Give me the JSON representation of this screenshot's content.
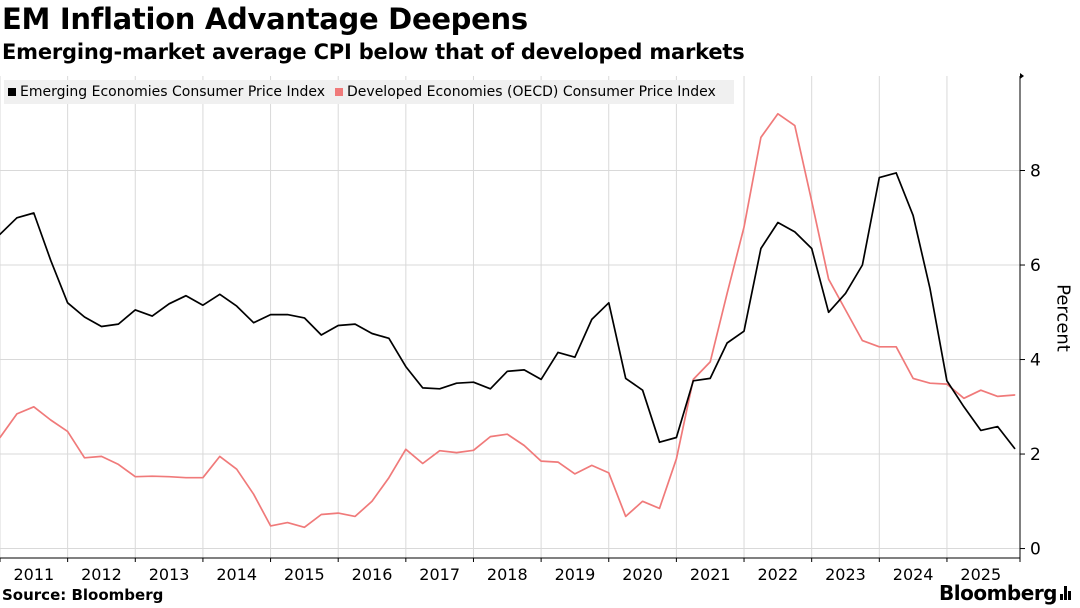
{
  "header": {
    "title": "EM Inflation Advantage Deepens",
    "subtitle": "Emerging-market average CPI below that of developed markets"
  },
  "footer": {
    "source": "Source: Bloomberg",
    "brand": "Bloomberg"
  },
  "colors": {
    "em": "#000000",
    "dm": "#f07a7a",
    "grid": "#d9d9d9",
    "legend_bg": "#f0f0f0"
  },
  "chart_data": {
    "type": "line",
    "title": "EM Inflation Advantage Deepens",
    "subtitle": "Emerging-market average CPI below that of developed markets",
    "xlabel": "",
    "ylabel": "Percent",
    "ylim": [
      -0.2,
      10
    ],
    "yticks": [
      0,
      2,
      4,
      6,
      8
    ],
    "xlim": [
      2011.0,
      2026.08
    ],
    "xticks": [
      2011,
      2012,
      2013,
      2014,
      2015,
      2016,
      2017,
      2018,
      2019,
      2020,
      2021,
      2022,
      2023,
      2024,
      2025
    ],
    "xtick_labels": [
      "2011",
      "2012",
      "2013",
      "2014",
      "2015",
      "2016",
      "2017",
      "2018",
      "2019",
      "2020",
      "2021",
      "2022",
      "2023",
      "2024",
      "2025"
    ],
    "grid": true,
    "legend_position": "top-left",
    "series": [
      {
        "name": "Emerging Economies Consumer Price Index",
        "color": "#000000",
        "points": [
          [
            2011.0,
            6.65
          ],
          [
            2011.25,
            7.0
          ],
          [
            2011.5,
            7.1
          ],
          [
            2011.75,
            6.1
          ],
          [
            2012.0,
            5.2
          ],
          [
            2012.25,
            4.9
          ],
          [
            2012.5,
            4.7
          ],
          [
            2012.75,
            4.75
          ],
          [
            2013.0,
            5.05
          ],
          [
            2013.25,
            4.92
          ],
          [
            2013.5,
            5.18
          ],
          [
            2013.75,
            5.35
          ],
          [
            2014.0,
            5.15
          ],
          [
            2014.25,
            5.38
          ],
          [
            2014.5,
            5.13
          ],
          [
            2014.75,
            4.78
          ],
          [
            2015.0,
            4.95
          ],
          [
            2015.25,
            4.95
          ],
          [
            2015.5,
            4.88
          ],
          [
            2015.75,
            4.52
          ],
          [
            2016.0,
            4.72
          ],
          [
            2016.25,
            4.75
          ],
          [
            2016.5,
            4.55
          ],
          [
            2016.75,
            4.45
          ],
          [
            2017.0,
            3.85
          ],
          [
            2017.25,
            3.4
          ],
          [
            2017.5,
            3.38
          ],
          [
            2017.75,
            3.5
          ],
          [
            2018.0,
            3.52
          ],
          [
            2018.25,
            3.38
          ],
          [
            2018.5,
            3.75
          ],
          [
            2018.75,
            3.78
          ],
          [
            2019.0,
            3.58
          ],
          [
            2019.25,
            4.15
          ],
          [
            2019.5,
            4.05
          ],
          [
            2019.75,
            4.85
          ],
          [
            2020.0,
            5.2
          ],
          [
            2020.25,
            3.6
          ],
          [
            2020.5,
            3.35
          ],
          [
            2020.75,
            2.25
          ],
          [
            2021.0,
            2.35
          ],
          [
            2021.25,
            3.55
          ],
          [
            2021.5,
            3.6
          ],
          [
            2021.75,
            4.35
          ],
          [
            2022.0,
            4.6
          ],
          [
            2022.25,
            6.35
          ],
          [
            2022.5,
            6.9
          ],
          [
            2022.75,
            6.7
          ],
          [
            2023.0,
            6.35
          ],
          [
            2023.25,
            5.0
          ],
          [
            2023.5,
            5.4
          ],
          [
            2023.75,
            6.0
          ],
          [
            2024.0,
            7.85
          ],
          [
            2024.25,
            7.95
          ],
          [
            2024.5,
            7.05
          ],
          [
            2024.75,
            5.5
          ],
          [
            2025.0,
            3.55
          ],
          [
            2025.25,
            3.0
          ],
          [
            2025.5,
            2.5
          ],
          [
            2025.75,
            2.58
          ],
          [
            2026.0,
            2.12
          ]
        ]
      },
      {
        "name": "Developed Economies (OECD) Consumer Price Index",
        "color": "#f07a7a",
        "points": [
          [
            2011.0,
            2.35
          ],
          [
            2011.25,
            2.85
          ],
          [
            2011.5,
            3.0
          ],
          [
            2011.75,
            2.72
          ],
          [
            2012.0,
            2.48
          ],
          [
            2012.25,
            1.92
          ],
          [
            2012.5,
            1.95
          ],
          [
            2012.75,
            1.78
          ],
          [
            2013.0,
            1.52
          ],
          [
            2013.25,
            1.53
          ],
          [
            2013.5,
            1.52
          ],
          [
            2013.75,
            1.5
          ],
          [
            2014.0,
            1.5
          ],
          [
            2014.25,
            1.95
          ],
          [
            2014.5,
            1.68
          ],
          [
            2014.75,
            1.15
          ],
          [
            2015.0,
            0.48
          ],
          [
            2015.25,
            0.55
          ],
          [
            2015.5,
            0.45
          ],
          [
            2015.75,
            0.72
          ],
          [
            2016.0,
            0.75
          ],
          [
            2016.25,
            0.68
          ],
          [
            2016.5,
            1.0
          ],
          [
            2016.75,
            1.5
          ],
          [
            2017.0,
            2.1
          ],
          [
            2017.25,
            1.8
          ],
          [
            2017.5,
            2.07
          ],
          [
            2017.75,
            2.03
          ],
          [
            2018.0,
            2.08
          ],
          [
            2018.25,
            2.37
          ],
          [
            2018.5,
            2.42
          ],
          [
            2018.75,
            2.18
          ],
          [
            2019.0,
            1.85
          ],
          [
            2019.25,
            1.83
          ],
          [
            2019.5,
            1.58
          ],
          [
            2019.75,
            1.76
          ],
          [
            2020.0,
            1.6
          ],
          [
            2020.25,
            0.68
          ],
          [
            2020.5,
            1.0
          ],
          [
            2020.75,
            0.85
          ],
          [
            2021.0,
            1.9
          ],
          [
            2021.25,
            3.58
          ],
          [
            2021.5,
            3.95
          ],
          [
            2021.75,
            5.4
          ],
          [
            2022.0,
            6.8
          ],
          [
            2022.25,
            8.7
          ],
          [
            2022.5,
            9.2
          ],
          [
            2022.75,
            8.95
          ],
          [
            2023.0,
            7.35
          ],
          [
            2023.25,
            5.7
          ],
          [
            2023.5,
            5.05
          ],
          [
            2023.75,
            4.4
          ],
          [
            2024.0,
            4.27
          ],
          [
            2024.25,
            4.27
          ],
          [
            2024.5,
            3.6
          ],
          [
            2024.75,
            3.5
          ],
          [
            2025.0,
            3.48
          ],
          [
            2025.25,
            3.18
          ],
          [
            2025.5,
            3.35
          ],
          [
            2025.75,
            3.22
          ],
          [
            2026.0,
            3.25
          ]
        ]
      }
    ]
  }
}
